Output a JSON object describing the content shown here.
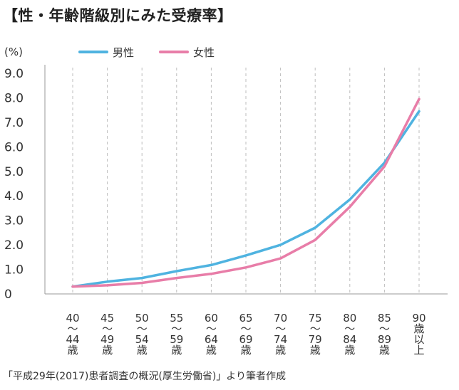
{
  "title": "【性・年齢階級別にみた受療率】",
  "source": "「平成29年(2017)患者調査の概況(厚生労働省)」より筆者作成",
  "chart_data": {
    "type": "line",
    "title": "【性・年齢階級別にみた受療率】",
    "ylabel": "(%)",
    "xlabel": "",
    "ylim": [
      0,
      9.0
    ],
    "yticks": [
      "0",
      "1.0",
      "2.0",
      "3.0",
      "4.0",
      "5.0",
      "6.0",
      "7.0",
      "8.0",
      "9.0"
    ],
    "grid": "vertical dashed",
    "legend_placement": "top",
    "categories": [
      [
        "40",
        "〜",
        "44",
        "歳"
      ],
      [
        "45",
        "〜",
        "49",
        "歳"
      ],
      [
        "50",
        "〜",
        "54",
        "歳"
      ],
      [
        "55",
        "〜",
        "59",
        "歳"
      ],
      [
        "60",
        "〜",
        "64",
        "歳"
      ],
      [
        "65",
        "〜",
        "69",
        "歳"
      ],
      [
        "70",
        "〜",
        "74",
        "歳"
      ],
      [
        "75",
        "〜",
        "79",
        "歳"
      ],
      [
        "80",
        "〜",
        "84",
        "歳"
      ],
      [
        "85",
        "〜",
        "89",
        "歳"
      ],
      [
        "90",
        "歳",
        "以",
        "上"
      ]
    ],
    "series": [
      {
        "name": "男性",
        "color": "#4fb3e0",
        "values": [
          0.3,
          0.5,
          0.65,
          0.93,
          1.18,
          1.57,
          2.0,
          2.7,
          3.85,
          5.35,
          7.45
        ]
      },
      {
        "name": "女性",
        "color": "#e87da8",
        "values": [
          0.3,
          0.35,
          0.45,
          0.65,
          0.82,
          1.08,
          1.45,
          2.2,
          3.55,
          5.2,
          7.95
        ]
      }
    ]
  }
}
